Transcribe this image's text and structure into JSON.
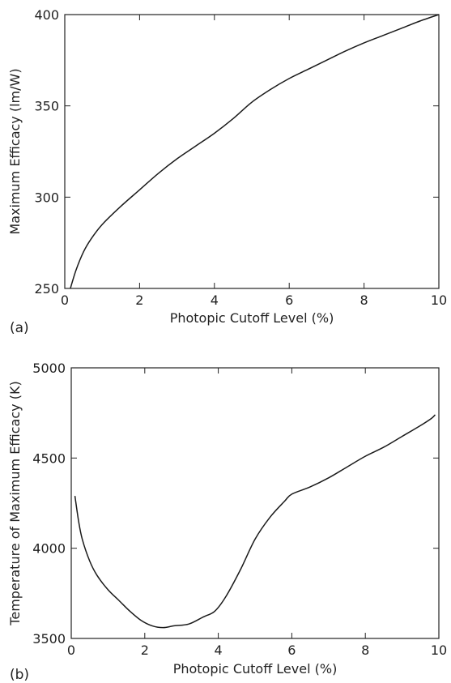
{
  "chart_data": [
    {
      "type": "line",
      "panel_label": "(a)",
      "xlabel": "Photopic Cutoff Level (%)",
      "ylabel": "Maximum Efficacy (lm/W)",
      "xlim": [
        0,
        10
      ],
      "ylim": [
        250,
        400
      ],
      "xticks": [
        0,
        2,
        4,
        6,
        8,
        10
      ],
      "yticks": [
        250,
        300,
        350,
        400
      ],
      "grid": false,
      "line_color": "#1a1a1a",
      "series": [
        {
          "x": [
            0.15,
            0.3,
            0.5,
            0.7,
            1.0,
            1.5,
            2.0,
            2.5,
            3.0,
            3.5,
            4.0,
            4.5,
            5.0,
            5.5,
            6.0,
            6.5,
            7.0,
            7.5,
            8.0,
            8.5,
            9.0,
            9.5,
            10.0
          ],
          "y": [
            250,
            260,
            270,
            277,
            285,
            295,
            304,
            313,
            321,
            328,
            335,
            343,
            352,
            359,
            365,
            370,
            375,
            380,
            384.5,
            388.5,
            392.5,
            396.5,
            400
          ]
        }
      ]
    },
    {
      "type": "line",
      "panel_label": "(b)",
      "xlabel": "Photopic Cutoff Level (%)",
      "ylabel": "Temperature of Maximum Efficacy (K)",
      "xlim": [
        0,
        10
      ],
      "ylim": [
        3500,
        5000
      ],
      "xticks": [
        0,
        2,
        4,
        6,
        8,
        10
      ],
      "yticks": [
        3500,
        4000,
        4500,
        5000
      ],
      "grid": false,
      "line_color": "#1a1a1a",
      "series": [
        {
          "x": [
            0.1,
            0.2,
            0.3,
            0.5,
            0.7,
            1.0,
            1.3,
            1.6,
            1.9,
            2.2,
            2.5,
            2.8,
            3.2,
            3.6,
            3.9,
            4.2,
            4.6,
            5.0,
            5.4,
            5.8,
            6.0,
            6.5,
            7.0,
            7.5,
            8.0,
            8.5,
            9.0,
            9.5,
            9.8,
            9.9
          ],
          "y": [
            4290,
            4150,
            4050,
            3930,
            3850,
            3770,
            3710,
            3650,
            3600,
            3570,
            3560,
            3570,
            3580,
            3620,
            3650,
            3730,
            3880,
            4050,
            4170,
            4260,
            4300,
            4340,
            4390,
            4450,
            4510,
            4560,
            4620,
            4680,
            4720,
            4740
          ]
        }
      ]
    }
  ]
}
